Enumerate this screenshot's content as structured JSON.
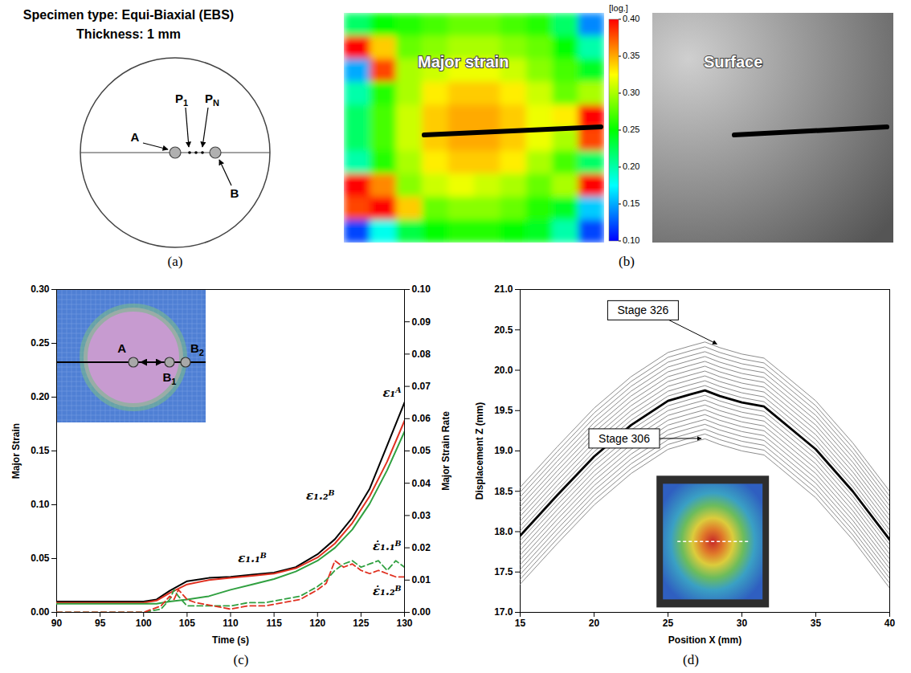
{
  "panel_a": {
    "title": [
      "Specimen type: Equi-Biaxial (EBS)",
      "Thickness: 1 mm"
    ],
    "points": [
      {
        "text": "A"
      },
      {
        "text": "P",
        "sub": "1"
      },
      {
        "text": "P",
        "sub": "N"
      },
      {
        "text": "B"
      }
    ],
    "caption": "(a)"
  },
  "panel_b": {
    "caption": "(b)",
    "heatmap": {
      "label": "Major strain",
      "colorbar": {
        "title": "[log.]",
        "range": [
          0.1,
          0.4
        ],
        "ticks": [
          {
            "value": 0.1,
            "label": "0.10"
          },
          0.15,
          {
            "value": 0.2,
            "label": "0.20"
          },
          0.25,
          {
            "value": 0.3,
            "label": "0.30"
          },
          0.35,
          {
            "value": 0.4,
            "label": "0.40"
          }
        ]
      },
      "cells": [
        [
          0.22,
          0.25,
          0.26,
          0.27,
          0.28,
          0.28,
          0.27,
          0.26,
          0.22,
          0.14
        ],
        [
          0.4,
          0.34,
          0.28,
          0.29,
          0.3,
          0.3,
          0.29,
          0.28,
          0.25,
          0.2
        ],
        [
          0.15,
          0.38,
          0.3,
          0.31,
          0.32,
          0.32,
          0.31,
          0.29,
          0.27,
          0.24
        ],
        [
          0.2,
          0.26,
          0.3,
          0.33,
          0.34,
          0.34,
          0.33,
          0.31,
          0.28,
          0.3
        ],
        [
          0.22,
          0.27,
          0.31,
          0.34,
          0.35,
          0.35,
          0.34,
          0.32,
          0.33,
          0.4
        ],
        [
          0.22,
          0.27,
          0.31,
          0.34,
          0.35,
          0.35,
          0.34,
          0.32,
          0.3,
          0.38
        ],
        [
          0.2,
          0.26,
          0.3,
          0.33,
          0.34,
          0.34,
          0.33,
          0.3,
          0.27,
          0.22
        ],
        [
          0.4,
          0.36,
          0.29,
          0.31,
          0.32,
          0.31,
          0.3,
          0.28,
          0.3,
          0.4
        ],
        [
          0.38,
          0.4,
          0.34,
          0.28,
          0.29,
          0.29,
          0.28,
          0.26,
          0.24,
          0.16
        ],
        [
          0.12,
          0.18,
          0.23,
          0.25,
          0.26,
          0.26,
          0.25,
          0.24,
          0.2,
          0.12
        ]
      ]
    },
    "surface": {
      "label": "Surface"
    }
  },
  "chart_data": [
    {
      "type": "line",
      "caption": "(c)",
      "x_label": "Time (s)",
      "y_label": "Major Strain",
      "y2_label": "Major Strain Rate",
      "xlim": [
        90,
        130
      ],
      "xticks": [
        90,
        95,
        100,
        105,
        110,
        115,
        120,
        125,
        130
      ],
      "ylim": [
        0,
        0.3
      ],
      "yticks": [
        {
          "value": 0,
          "label": "0.00"
        },
        0.05,
        {
          "value": 0.1,
          "label": "0.10"
        },
        0.15,
        {
          "value": 0.2,
          "label": "0.20"
        },
        0.25,
        {
          "value": 0.3,
          "label": "0.30"
        }
      ],
      "y2lim": [
        0,
        0.1
      ],
      "y2ticks": [
        {
          "value": 0,
          "label": "0.00"
        },
        0.01,
        0.02,
        0.03,
        0.04,
        0.05,
        0.06,
        0.07,
        0.08,
        0.09,
        {
          "value": 0.1,
          "label": "0.10"
        }
      ],
      "grid": false,
      "series": [
        {
          "name": "ε₁ᴬ",
          "color": "#000000",
          "line_style": "solid",
          "x": [
            90,
            100,
            101.5,
            103,
            105,
            107.5,
            110,
            112.5,
            115,
            117.5,
            120,
            122,
            124,
            126,
            128,
            130
          ],
          "values": [
            0.01,
            0.01,
            0.012,
            0.02,
            0.029,
            0.032,
            0.033,
            0.035,
            0.037,
            0.042,
            0.054,
            0.068,
            0.088,
            0.115,
            0.155,
            0.195
          ]
        },
        {
          "name": "ε₁.₂ᴮ",
          "color": "#e03020",
          "line_style": "solid",
          "x": [
            90,
            100,
            101.5,
            103,
            105,
            107.5,
            110,
            112.5,
            115,
            117.5,
            120,
            122,
            124,
            126,
            128,
            130
          ],
          "values": [
            0.009,
            0.009,
            0.011,
            0.018,
            0.026,
            0.03,
            0.032,
            0.034,
            0.036,
            0.041,
            0.051,
            0.064,
            0.083,
            0.108,
            0.14,
            0.178
          ]
        },
        {
          "name": "ε₁.₁ᴮ",
          "color": "#30a040",
          "line_style": "solid",
          "x": [
            90,
            100,
            101.5,
            103,
            105,
            107.5,
            110,
            112.5,
            115,
            117.5,
            120,
            122,
            124,
            126,
            128,
            130
          ],
          "values": [
            0.008,
            0.008,
            0.008,
            0.01,
            0.012,
            0.015,
            0.021,
            0.026,
            0.031,
            0.038,
            0.048,
            0.06,
            0.077,
            0.101,
            0.132,
            0.168
          ]
        },
        {
          "name": "ε̇₁.₁ᴮ",
          "color": "#30a040",
          "line_style": "dashed",
          "axis": "y2",
          "x": [
            90,
            100,
            102,
            103,
            103.5,
            104,
            105,
            106,
            108,
            110,
            112,
            114,
            116,
            118,
            120,
            121,
            122,
            123,
            124,
            125,
            126,
            127,
            128,
            129,
            130
          ],
          "values": [
            0,
            0,
            0.001,
            0.004,
            0.007,
            0.005,
            0.002,
            0.002,
            0.002,
            0.002,
            0.003,
            0.003,
            0.004,
            0.005,
            0.008,
            0.01,
            0.013,
            0.015,
            0.016,
            0.014,
            0.015,
            0.016,
            0.013,
            0.016,
            0.014
          ]
        },
        {
          "name": "ε̇₁.₂ᴮ",
          "color": "#e03020",
          "line_style": "dashed",
          "axis": "y2",
          "x": [
            90,
            100,
            102,
            103,
            103.5,
            104,
            105,
            106,
            108,
            110,
            112,
            114,
            116,
            118,
            120,
            121,
            122,
            123,
            124,
            125,
            126,
            127,
            128,
            129,
            130
          ],
          "values": [
            0,
            0,
            0.002,
            0.005,
            0.004,
            0.007,
            0.004,
            0.003,
            0.002,
            0.001,
            0.002,
            0.002,
            0.003,
            0.004,
            0.007,
            0.009,
            0.016,
            0.014,
            0.015,
            0.013,
            0.012,
            0.013,
            0.012,
            0.011,
            0.011
          ]
        }
      ],
      "inset": {
        "points": [
          {
            "text": "A"
          },
          {
            "text": "B",
            "sub": "1"
          },
          {
            "text": "B",
            "sub": "2"
          }
        ]
      }
    },
    {
      "type": "line",
      "caption": "(d)",
      "x_label": "Position X (mm)",
      "y_label": "Displacement Z (mm)",
      "xlim": [
        15,
        40
      ],
      "xticks": [
        15,
        20,
        25,
        30,
        35,
        40
      ],
      "ylim": [
        17,
        21
      ],
      "yticks": [
        {
          "value": 17,
          "label": "17.0"
        },
        17.5,
        {
          "value": 18,
          "label": "18.0"
        },
        18.5,
        {
          "value": 19,
          "label": "19.0"
        },
        19.5,
        {
          "value": 20,
          "label": "20.0"
        },
        20.5,
        {
          "value": 21,
          "label": "21.0"
        }
      ],
      "grid": false,
      "x": [
        15,
        17.5,
        20,
        22.5,
        25,
        26.5,
        27.5,
        28.5,
        30,
        31.5,
        32.5,
        35,
        37.5,
        40
      ],
      "series": [
        {
          "name": "Stage 306",
          "color": "#8c8c8c",
          "line_style": "solid",
          "values": [
            17.35,
            17.85,
            18.33,
            18.72,
            19.02,
            19.1,
            19.15,
            19.08,
            19.0,
            18.95,
            18.8,
            18.42,
            17.9,
            17.3
          ]
        },
        {
          "color": "#8c8c8c",
          "line_style": "solid",
          "values": [
            17.41,
            17.91,
            18.39,
            18.78,
            19.08,
            19.16,
            19.21,
            19.14,
            19.06,
            19.01,
            18.86,
            18.48,
            17.96,
            17.36
          ]
        },
        {
          "color": "#8c8c8c",
          "line_style": "solid",
          "values": [
            17.47,
            17.97,
            18.45,
            18.84,
            19.14,
            19.22,
            19.27,
            19.2,
            19.12,
            19.07,
            18.92,
            18.54,
            18.02,
            17.42
          ]
        },
        {
          "color": "#8c8c8c",
          "line_style": "solid",
          "values": [
            17.53,
            18.03,
            18.51,
            18.9,
            19.2,
            19.28,
            19.33,
            19.26,
            19.18,
            19.13,
            18.98,
            18.6,
            18.08,
            17.48
          ]
        },
        {
          "color": "#8c8c8c",
          "line_style": "solid",
          "values": [
            17.59,
            18.09,
            18.57,
            18.96,
            19.26,
            19.34,
            19.39,
            19.32,
            19.24,
            19.19,
            19.04,
            18.66,
            18.14,
            17.54
          ]
        },
        {
          "color": "#8c8c8c",
          "line_style": "solid",
          "values": [
            17.65,
            18.15,
            18.63,
            19.02,
            19.32,
            19.4,
            19.45,
            19.38,
            19.3,
            19.25,
            19.1,
            18.72,
            18.2,
            17.6
          ]
        },
        {
          "color": "#8c8c8c",
          "line_style": "solid",
          "values": [
            17.71,
            18.21,
            18.69,
            19.08,
            19.38,
            19.46,
            19.51,
            19.44,
            19.36,
            19.31,
            19.16,
            18.78,
            18.26,
            17.66
          ]
        },
        {
          "color": "#8c8c8c",
          "line_style": "solid",
          "values": [
            17.77,
            18.27,
            18.75,
            19.14,
            19.44,
            19.52,
            19.57,
            19.5,
            19.42,
            19.37,
            19.22,
            18.84,
            18.32,
            17.72
          ]
        },
        {
          "color": "#8c8c8c",
          "line_style": "solid",
          "values": [
            17.83,
            18.33,
            18.81,
            19.2,
            19.5,
            19.58,
            19.63,
            19.56,
            19.48,
            19.43,
            19.28,
            18.9,
            18.38,
            17.78
          ]
        },
        {
          "color": "#8c8c8c",
          "line_style": "solid",
          "values": [
            17.89,
            18.39,
            18.87,
            19.26,
            19.56,
            19.64,
            19.69,
            19.62,
            19.54,
            19.49,
            19.34,
            18.96,
            18.44,
            17.84
          ]
        },
        {
          "color": "#000000",
          "line_style": "thick",
          "values": [
            17.95,
            18.45,
            18.93,
            19.32,
            19.62,
            19.7,
            19.75,
            19.68,
            19.6,
            19.55,
            19.4,
            19.02,
            18.5,
            17.9
          ]
        },
        {
          "color": "#8c8c8c",
          "line_style": "solid",
          "values": [
            18.01,
            18.51,
            18.99,
            19.38,
            19.68,
            19.76,
            19.81,
            19.74,
            19.66,
            19.61,
            19.46,
            19.08,
            18.56,
            17.96
          ]
        },
        {
          "color": "#8c8c8c",
          "line_style": "solid",
          "values": [
            18.07,
            18.57,
            19.05,
            19.44,
            19.74,
            19.82,
            19.87,
            19.8,
            19.72,
            19.67,
            19.52,
            19.14,
            18.62,
            18.02
          ]
        },
        {
          "color": "#8c8c8c",
          "line_style": "solid",
          "values": [
            18.13,
            18.63,
            19.11,
            19.5,
            19.8,
            19.88,
            19.93,
            19.86,
            19.78,
            19.73,
            19.58,
            19.2,
            18.68,
            18.08
          ]
        },
        {
          "color": "#8c8c8c",
          "line_style": "solid",
          "values": [
            18.19,
            18.69,
            19.17,
            19.56,
            19.86,
            19.94,
            19.99,
            19.92,
            19.84,
            19.79,
            19.64,
            19.26,
            18.74,
            18.14
          ]
        },
        {
          "color": "#8c8c8c",
          "line_style": "solid",
          "values": [
            18.25,
            18.75,
            19.23,
            19.62,
            19.92,
            20.0,
            20.05,
            19.98,
            19.9,
            19.85,
            19.7,
            19.32,
            18.8,
            18.2
          ]
        },
        {
          "color": "#8c8c8c",
          "line_style": "solid",
          "values": [
            18.31,
            18.81,
            19.29,
            19.68,
            19.98,
            20.06,
            20.11,
            20.04,
            19.96,
            19.91,
            19.76,
            19.38,
            18.86,
            18.26
          ]
        },
        {
          "color": "#8c8c8c",
          "line_style": "solid",
          "values": [
            18.37,
            18.87,
            19.35,
            19.74,
            20.04,
            20.12,
            20.17,
            20.1,
            20.02,
            19.97,
            19.82,
            19.44,
            18.92,
            18.32
          ]
        },
        {
          "color": "#8c8c8c",
          "line_style": "solid",
          "values": [
            18.43,
            18.93,
            19.41,
            19.8,
            20.1,
            20.18,
            20.23,
            20.16,
            20.08,
            20.03,
            19.88,
            19.5,
            18.98,
            18.38
          ]
        },
        {
          "color": "#8c8c8c",
          "line_style": "solid",
          "values": [
            18.49,
            18.99,
            19.47,
            19.86,
            20.16,
            20.24,
            20.29,
            20.22,
            20.14,
            20.09,
            19.94,
            19.56,
            19.04,
            18.44
          ]
        },
        {
          "name": "Stage 326",
          "color": "#8c8c8c",
          "line_style": "solid",
          "values": [
            18.55,
            19.05,
            19.53,
            19.92,
            20.22,
            20.3,
            20.35,
            20.28,
            20.2,
            20.15,
            20.0,
            19.62,
            19.1,
            18.5
          ]
        }
      ]
    }
  ]
}
